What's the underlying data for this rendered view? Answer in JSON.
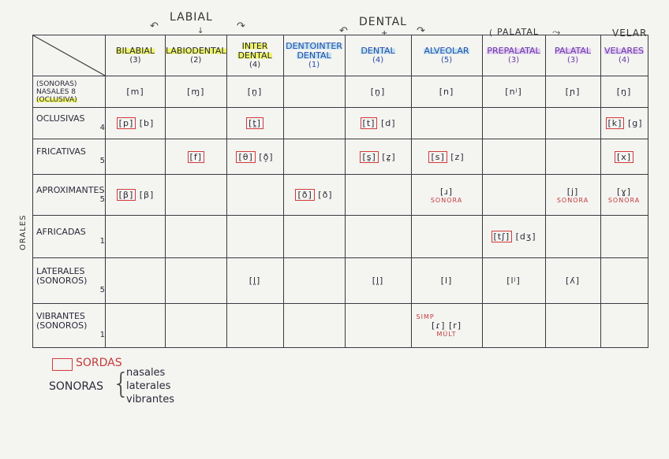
{
  "groups": {
    "labial": "LABIAL",
    "dental": "DENTAL",
    "palatal": "PALATAL",
    "velar": "VELAR",
    "dental_mark": "+"
  },
  "columns": [
    {
      "label": "BILABIAL",
      "count": "(3)"
    },
    {
      "label": "LABIODENTAL",
      "count": "(2)"
    },
    {
      "label": "INTER DENTAL",
      "count": "(4)"
    },
    {
      "label": "DENTOINTER DENTAL",
      "count": "(1)"
    },
    {
      "label": "DENTAL",
      "count": "(4)"
    },
    {
      "label": "ALVEOLAR",
      "count": "(5)"
    },
    {
      "label": "PREPALATAL",
      "count": "(3)"
    },
    {
      "label": "PALATAL",
      "count": "(3)"
    },
    {
      "label": "VELARES",
      "count": "(4)"
    }
  ],
  "nasal_row": {
    "label_1": "(SONORAS)",
    "label_2": "NASALES",
    "label_3": "(OCLUSIVA)",
    "count": "8",
    "cells": [
      "[m]",
      "[ɱ]",
      "[n̪]",
      "",
      "[n̪]",
      "[n]",
      "[nʲ]",
      "[ɲ]",
      "[ŋ]"
    ]
  },
  "side_label": "ORALES",
  "rows": [
    {
      "label": "OCLUSIVAS",
      "count": "4",
      "cells": [
        {
          "sorda": "[p]",
          "sonora": "[b]"
        },
        {},
        {
          "sorda": "[t̪]"
        },
        {},
        {
          "sorda": "[t]",
          "sonora": "[d]"
        },
        {},
        {},
        {},
        {
          "sorda": "[k]",
          "sonora": "[g]"
        }
      ]
    },
    {
      "label": "FRICATIVAS",
      "count": "5",
      "cells": [
        {},
        {
          "sorda": "[f]"
        },
        {
          "sorda": "[θ]",
          "sonora": "[ð̞]"
        },
        {},
        {
          "sorda": "[s̪]",
          "sonora": "[z̪]"
        },
        {
          "sorda": "[s]",
          "sonora": "[z]"
        },
        {},
        {},
        {
          "sorda": "[x]"
        }
      ]
    },
    {
      "label": "APROXIMANTES",
      "count": "5",
      "cells": [
        {
          "sorda": "[β]",
          "sonora": "[β]"
        },
        {},
        {},
        {
          "sorda": "[ð]",
          "sonora": "[ð]"
        },
        {},
        {
          "sonora": "[ɹ]",
          "note": "SONORA"
        },
        {},
        {
          "sonora": "[j]",
          "note": "SONORA"
        },
        {
          "sonora": "[ɣ]",
          "note": "SONORA"
        }
      ]
    },
    {
      "label": "AFRICADAS",
      "count": "1",
      "cells": [
        {},
        {},
        {},
        {},
        {},
        {},
        {
          "sorda": "[tʃ]",
          "sonora": "[dʒ]"
        },
        {},
        {}
      ]
    },
    {
      "label": "LATERALES (SONOROS)",
      "count": "5",
      "cells": [
        {},
        {},
        {
          "sonora": "[l̪]"
        },
        {},
        {
          "sonora": "[l̪]"
        },
        {
          "sonora": "[l]"
        },
        {
          "sonora": "[lʲ]"
        },
        {
          "sonora": "[ʎ]"
        },
        {}
      ]
    },
    {
      "label": "VIBRANTES (SONOROS)",
      "count": "1",
      "cells": [
        {},
        {},
        {},
        {},
        {},
        {
          "pre": "SIMP",
          "sonora": "[ɾ]",
          "sonora2": "[r]",
          "note": "MÚLT"
        },
        {},
        {},
        {}
      ]
    }
  ],
  "legend": {
    "sordas": "SORDAS",
    "sonoras": "SONORAS",
    "items": [
      "nasales",
      "laterales",
      "vibrantes"
    ]
  },
  "colors": {
    "sorda_box": "#d23b3b",
    "note_red": "#c43a3a",
    "hl_yellow": "#eef46a",
    "hl_blue": "#bfe3ef",
    "hl_purple": "#e0c9f0"
  }
}
